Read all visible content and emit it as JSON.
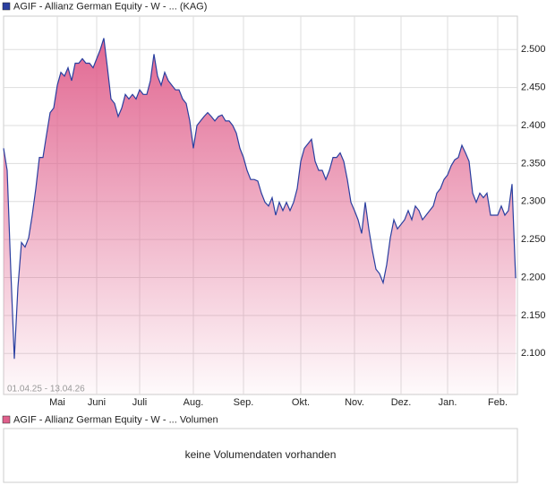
{
  "chart_data": {
    "type": "area",
    "title": "AGIF - Allianz German Equity - W - ... (KAG)",
    "date_range": "01.04.25 - 13.04.26",
    "color": "#2a3fa0",
    "area_color": "#e0608c",
    "grid": true,
    "ylim": [
      2046,
      2544
    ],
    "yticks": [
      {
        "value": 2100,
        "label": "2.100"
      },
      {
        "value": 2150,
        "label": "2.150"
      },
      {
        "value": 2200,
        "label": "2.200"
      },
      {
        "value": 2250,
        "label": "2.250"
      },
      {
        "value": 2300,
        "label": "2.300"
      },
      {
        "value": 2350,
        "label": "2.350"
      },
      {
        "value": 2400,
        "label": "2.400"
      },
      {
        "value": 2450,
        "label": "2.450"
      },
      {
        "value": 2500,
        "label": "2.500"
      }
    ],
    "xlim": [
      0,
      143
    ],
    "xticks": [
      {
        "value": 15,
        "label": "Mai"
      },
      {
        "value": 26,
        "label": "Juni"
      },
      {
        "value": 38,
        "label": "Juli"
      },
      {
        "value": 53,
        "label": "Aug."
      },
      {
        "value": 67,
        "label": "Sep."
      },
      {
        "value": 83,
        "label": "Okt."
      },
      {
        "value": 98,
        "label": "Nov."
      },
      {
        "value": 111,
        "label": "Dez."
      },
      {
        "value": 124,
        "label": "Jan."
      },
      {
        "value": 138,
        "label": "Feb."
      }
    ],
    "values": [
      2370,
      2341,
      2211,
      2093,
      2187,
      2246,
      2240,
      2252,
      2282,
      2317,
      2358,
      2358,
      2388,
      2417,
      2423,
      2453,
      2470,
      2465,
      2476,
      2459,
      2482,
      2482,
      2488,
      2482,
      2482,
      2476,
      2488,
      2500,
      2515,
      2476,
      2435,
      2429,
      2412,
      2423,
      2441,
      2435,
      2441,
      2435,
      2447,
      2441,
      2441,
      2459,
      2494,
      2465,
      2453,
      2470,
      2459,
      2453,
      2447,
      2447,
      2435,
      2429,
      2406,
      2370,
      2400,
      2406,
      2412,
      2417,
      2412,
      2406,
      2412,
      2414,
      2406,
      2406,
      2400,
      2390,
      2370,
      2358,
      2341,
      2329,
      2329,
      2327,
      2311,
      2299,
      2294,
      2305,
      2282,
      2299,
      2288,
      2299,
      2288,
      2299,
      2317,
      2353,
      2370,
      2376,
      2382,
      2353,
      2341,
      2341,
      2329,
      2341,
      2358,
      2358,
      2364,
      2353,
      2329,
      2299,
      2288,
      2276,
      2258,
      2299,
      2264,
      2235,
      2211,
      2205,
      2193,
      2217,
      2252,
      2276,
      2264,
      2270,
      2276,
      2288,
      2276,
      2294,
      2288,
      2276,
      2282,
      2288,
      2294,
      2311,
      2317,
      2329,
      2335,
      2347,
      2355,
      2358,
      2374,
      2364,
      2353,
      2311,
      2299,
      2311,
      2305,
      2311,
      2282,
      2282,
      2282,
      2294,
      2282,
      2288,
      2323,
      2199
    ]
  },
  "volume_panel": {
    "legend": "AGIF - Allianz German Equity - W - ... Volumen",
    "color": "#e0608c",
    "message": "keine Volumendaten vorhanden"
  }
}
